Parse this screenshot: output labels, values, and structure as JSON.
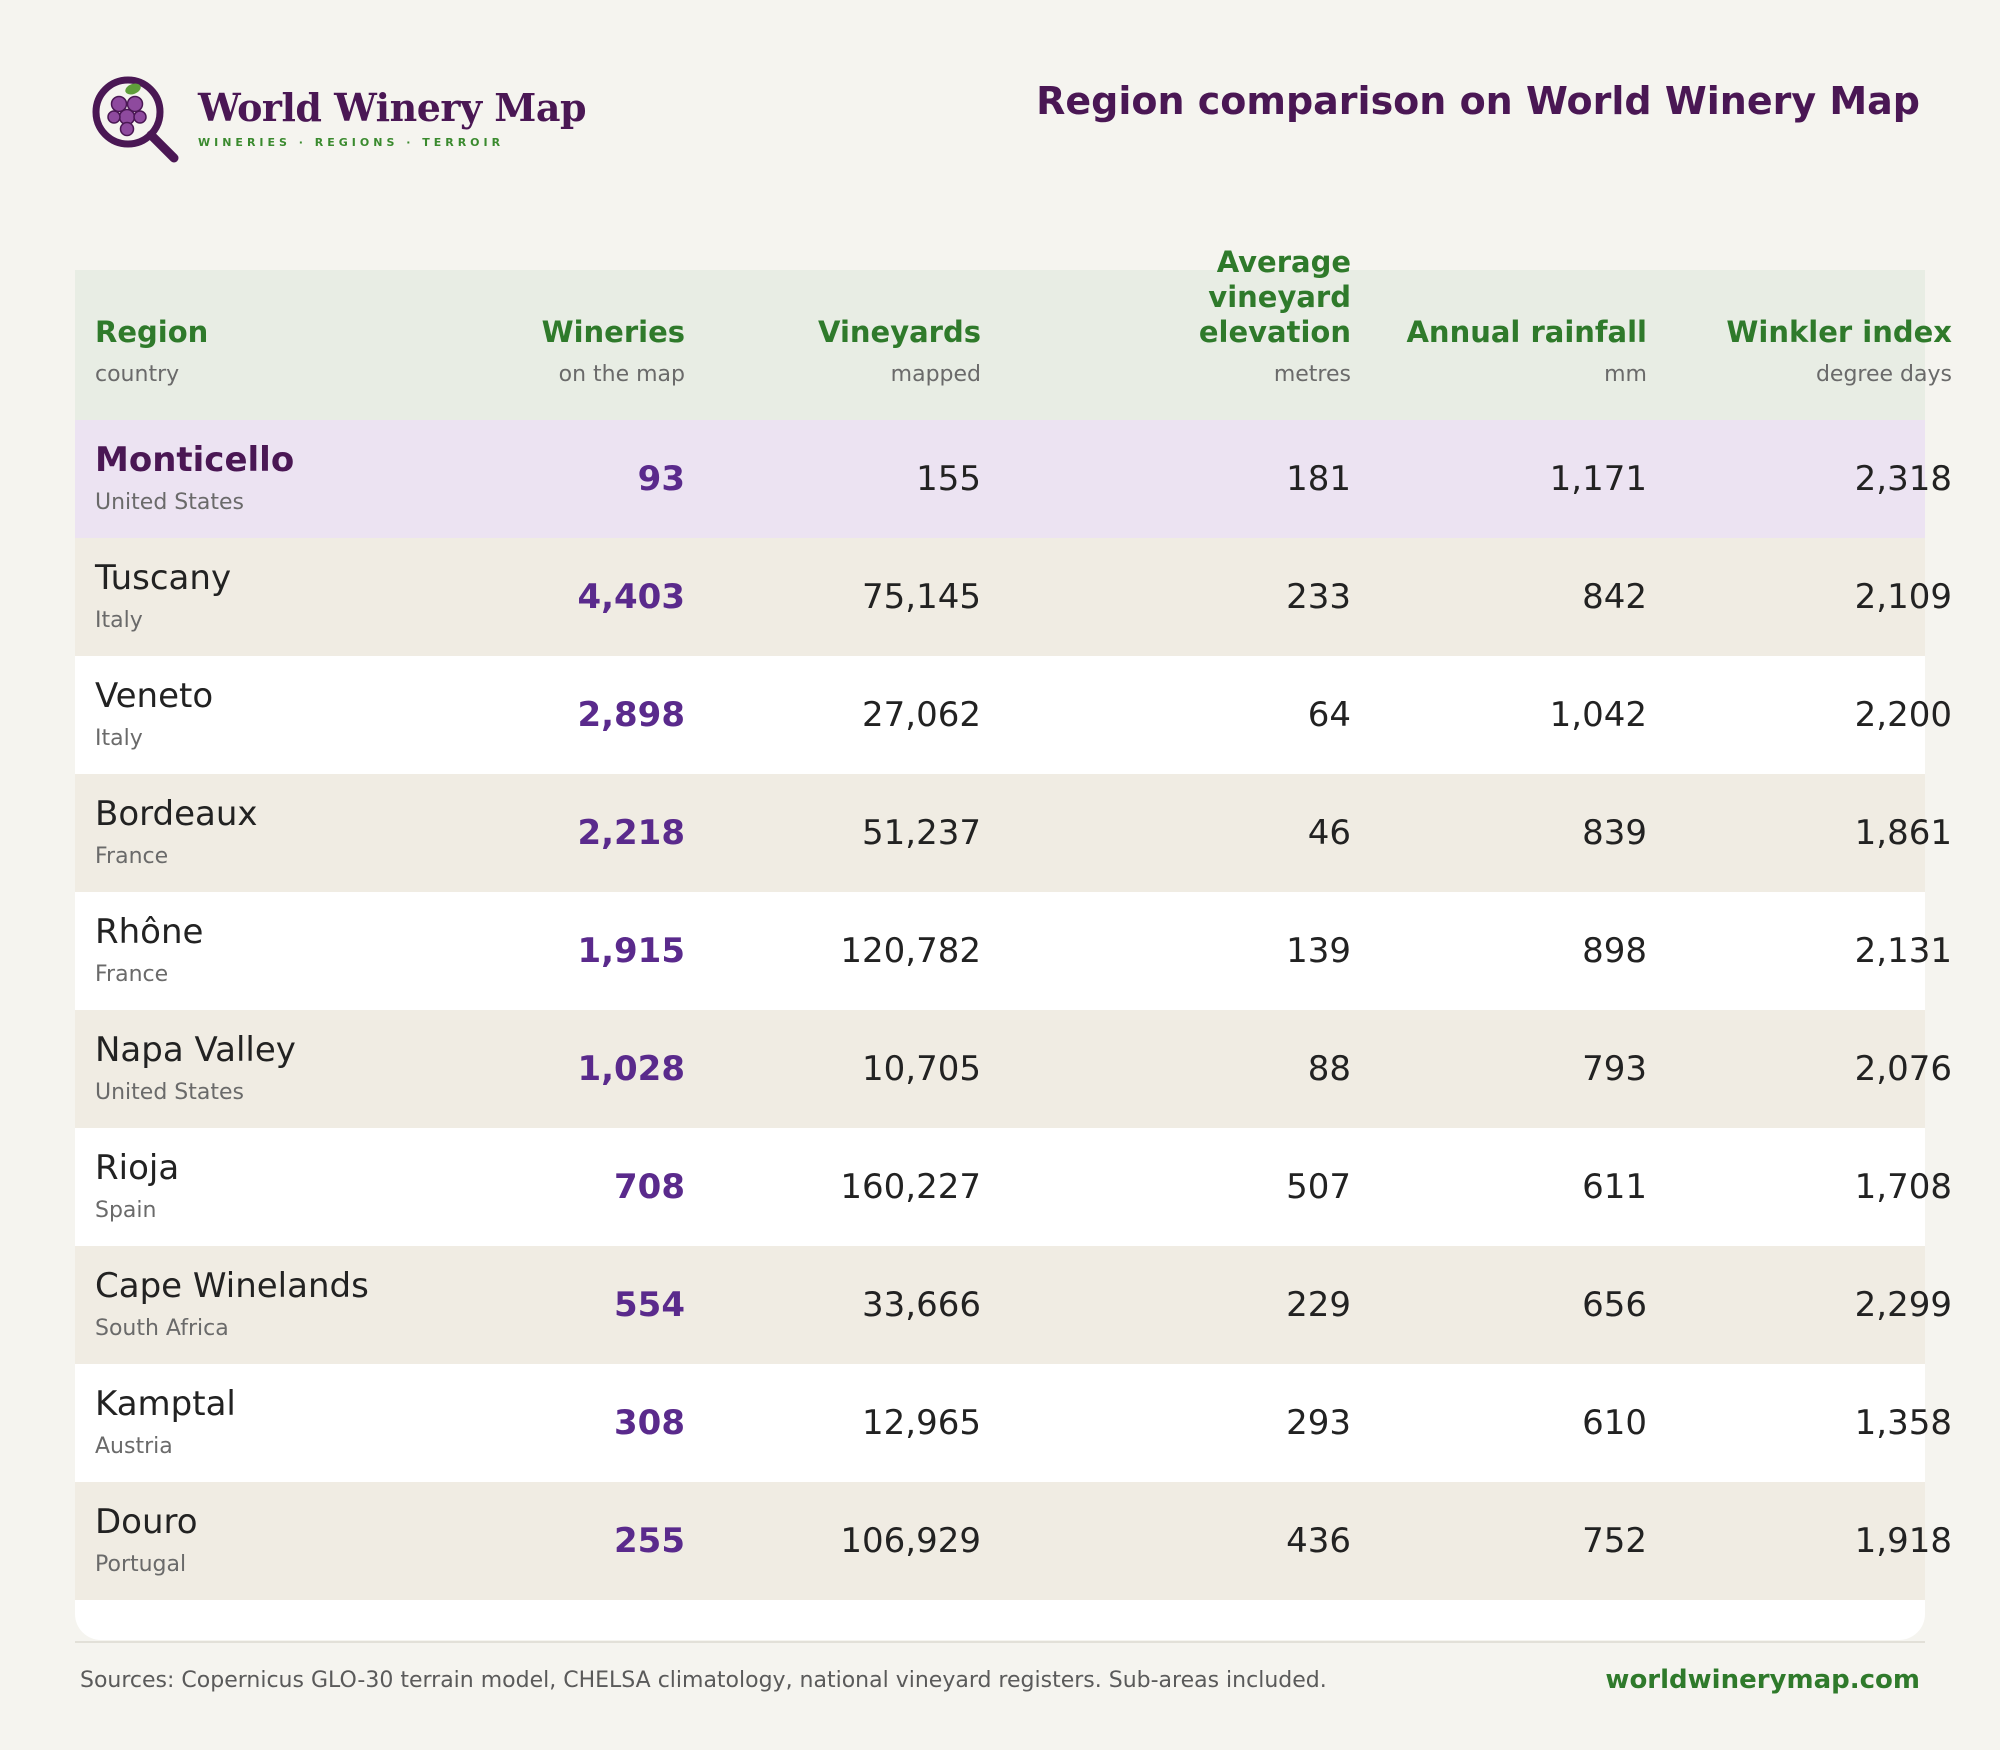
{
  "brand": {
    "name": "World Winery Map",
    "tagline": "WINERIES · REGIONS · TERROIR",
    "icon": "grape-magnifier-icon"
  },
  "page": {
    "title": "Region comparison on World Winery Map"
  },
  "colors": {
    "brand_purple": "#4a1754",
    "accent_green": "#2f7a2b",
    "wineries_purple": "#5a2a8c",
    "highlight_row": "#ece3f2",
    "alt_row": "#f0ece3",
    "header_bg": "#e8ede4",
    "page_bg": "#f5f4ef"
  },
  "table": {
    "columns": [
      {
        "label": "Region",
        "unit": "country"
      },
      {
        "label": "Wineries",
        "unit": "on the map"
      },
      {
        "label": "Vineyards",
        "unit": "mapped"
      },
      {
        "label": "Average vineyard elevation",
        "unit": "metres"
      },
      {
        "label": "Annual rainfall",
        "unit": "mm"
      },
      {
        "label": "Winkler index",
        "unit": "degree days"
      }
    ],
    "rows": [
      {
        "region": "Monticello",
        "country": "United States",
        "wineries": "93",
        "vineyards": "155",
        "elevation": "181",
        "rainfall": "1,171",
        "winkler": "2,318",
        "highlighted": true
      },
      {
        "region": "Tuscany",
        "country": "Italy",
        "wineries": "4,403",
        "vineyards": "75,145",
        "elevation": "233",
        "rainfall": "842",
        "winkler": "2,109"
      },
      {
        "region": "Veneto",
        "country": "Italy",
        "wineries": "2,898",
        "vineyards": "27,062",
        "elevation": "64",
        "rainfall": "1,042",
        "winkler": "2,200"
      },
      {
        "region": "Bordeaux",
        "country": "France",
        "wineries": "2,218",
        "vineyards": "51,237",
        "elevation": "46",
        "rainfall": "839",
        "winkler": "1,861"
      },
      {
        "region": "Rhône",
        "country": "France",
        "wineries": "1,915",
        "vineyards": "120,782",
        "elevation": "139",
        "rainfall": "898",
        "winkler": "2,131"
      },
      {
        "region": "Napa Valley",
        "country": "United States",
        "wineries": "1,028",
        "vineyards": "10,705",
        "elevation": "88",
        "rainfall": "793",
        "winkler": "2,076"
      },
      {
        "region": "Rioja",
        "country": "Spain",
        "wineries": "708",
        "vineyards": "160,227",
        "elevation": "507",
        "rainfall": "611",
        "winkler": "1,708"
      },
      {
        "region": "Cape Winelands",
        "country": "South Africa",
        "wineries": "554",
        "vineyards": "33,666",
        "elevation": "229",
        "rainfall": "656",
        "winkler": "2,299"
      },
      {
        "region": "Kamptal",
        "country": "Austria",
        "wineries": "308",
        "vineyards": "12,965",
        "elevation": "293",
        "rainfall": "610",
        "winkler": "1,358"
      },
      {
        "region": "Douro",
        "country": "Portugal",
        "wineries": "255",
        "vineyards": "106,929",
        "elevation": "436",
        "rainfall": "752",
        "winkler": "1,918"
      }
    ]
  },
  "footer": {
    "sources": "Sources: Copernicus GLO-30 terrain model, CHELSA climatology, national vineyard registers. Sub-areas included.",
    "site": "worldwinerymap.com"
  }
}
